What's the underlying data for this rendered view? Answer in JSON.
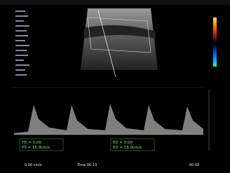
{
  "measurements": {
    "left": [
      "TD = 0.00",
      "PS = 15.0cm/s"
    ],
    "right": [
      "ED = 0.00",
      "ED = 15.0cm/s"
    ]
  },
  "footer": [
    "0.00 cm/s",
    "Time 00:13",
    "00:00"
  ]
}
